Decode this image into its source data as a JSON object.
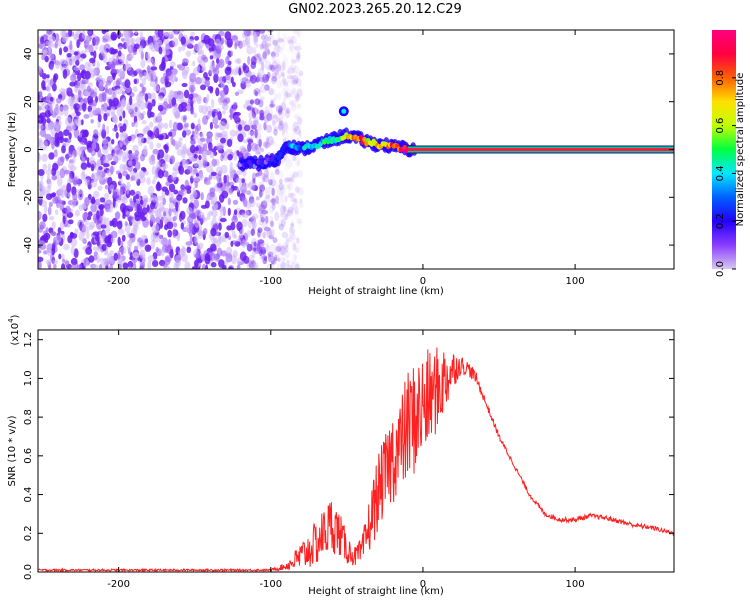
{
  "title": "GN02.2023.265.20.12.C29",
  "chart_data": [
    {
      "type": "heatmap",
      "xlabel": "Height of straight line (km)",
      "ylabel": "Frequency (Hz)",
      "xlim": [
        -253,
        165
      ],
      "ylim": [
        -50,
        50
      ],
      "x_ticks": [
        -200,
        -100,
        0,
        100
      ],
      "y_ticks": [
        -40,
        -20,
        0,
        20,
        40
      ],
      "colorbar": {
        "label": "Normalized spectral amplitude",
        "range": [
          0.0,
          1.0
        ],
        "ticks": [
          0.0,
          0.2,
          0.4,
          0.6,
          0.8
        ],
        "tick_labels": [
          "0.0",
          "0.2",
          "0.4",
          "0.6",
          "0.8"
        ],
        "colormap": [
          "#d8c8f0",
          "#8a3cff",
          "#2200ff",
          "#0060ff",
          "#00e8ff",
          "#00ff40",
          "#c0ff00",
          "#ffe000",
          "#ff6000",
          "#ff0040",
          "#ff0080"
        ]
      },
      "ridge_trace": {
        "x": [
          -120,
          -110,
          -100,
          -95,
          -90,
          -85,
          -80,
          -75,
          -70,
          -65,
          -60,
          -55,
          -50,
          -45,
          -40,
          -35,
          -30,
          -25,
          -20,
          -15,
          -10,
          -5,
          0,
          40,
          80,
          120,
          160
        ],
        "y": [
          -6,
          -6,
          -5,
          -4,
          2,
          1,
          0,
          1,
          2,
          3,
          4,
          5,
          6,
          5,
          4,
          3,
          2,
          2,
          1,
          1,
          0,
          0,
          0,
          0,
          0,
          0,
          0
        ],
        "amplitude": [
          0.15,
          0.18,
          0.2,
          0.25,
          0.3,
          0.32,
          0.35,
          0.4,
          0.42,
          0.45,
          0.5,
          0.5,
          0.7,
          0.75,
          0.8,
          0.6,
          0.65,
          0.7,
          0.8,
          0.9,
          0.95,
          0.95,
          0.98,
          0.98,
          0.98,
          0.98,
          0.98
        ]
      },
      "noise_region_x": [
        -253,
        -90
      ],
      "background_color": "#ffffff"
    },
    {
      "type": "line",
      "xlabel": "Height of straight line (km)",
      "ylabel": "SNR (10 * v/v)",
      "y_scale_label": "(x10",
      "y_scale_exponent": "4",
      "xlim": [
        -253,
        165
      ],
      "ylim": [
        0,
        1.25
      ],
      "x_ticks": [
        -200,
        -100,
        0,
        100
      ],
      "y_ticks": [
        0.0,
        0.2,
        0.4,
        0.6,
        0.8,
        1.0,
        1.2
      ],
      "y_tick_labels": [
        "0.0",
        "0.2",
        "0.4",
        "0.6",
        "0.8",
        "1.0",
        "1.2"
      ],
      "series": [
        {
          "color": "#ff2020",
          "x": [
            -253,
            -200,
            -150,
            -110,
            -100,
            -90,
            -80,
            -70,
            -60,
            -55,
            -50,
            -45,
            -40,
            -35,
            -30,
            -25,
            -20,
            -15,
            -10,
            -5,
            0,
            5,
            10,
            15,
            20,
            25,
            30,
            35,
            40,
            50,
            60,
            70,
            80,
            90,
            100,
            110,
            120,
            130,
            140,
            150,
            165
          ],
          "y": [
            0.01,
            0.01,
            0.01,
            0.01,
            0.01,
            0.03,
            0.08,
            0.15,
            0.25,
            0.2,
            0.12,
            0.08,
            0.1,
            0.25,
            0.4,
            0.5,
            0.6,
            0.65,
            0.75,
            0.8,
            0.85,
            0.9,
            0.95,
            1.0,
            1.05,
            1.07,
            1.05,
            1.0,
            0.9,
            0.7,
            0.55,
            0.4,
            0.3,
            0.27,
            0.27,
            0.29,
            0.28,
            0.26,
            0.24,
            0.23,
            0.2
          ],
          "noise": [
            0.005,
            0.005,
            0.005,
            0.005,
            0.005,
            0.02,
            0.08,
            0.12,
            0.15,
            0.12,
            0.08,
            0.05,
            0.08,
            0.15,
            0.2,
            0.2,
            0.25,
            0.25,
            0.3,
            0.3,
            0.3,
            0.25,
            0.22,
            0.18,
            0.1,
            0.05,
            0.04,
            0.03,
            0.02,
            0.015,
            0.012,
            0.012,
            0.012,
            0.012,
            0.012,
            0.012,
            0.012,
            0.012,
            0.012,
            0.012,
            0.012
          ]
        }
      ]
    }
  ]
}
